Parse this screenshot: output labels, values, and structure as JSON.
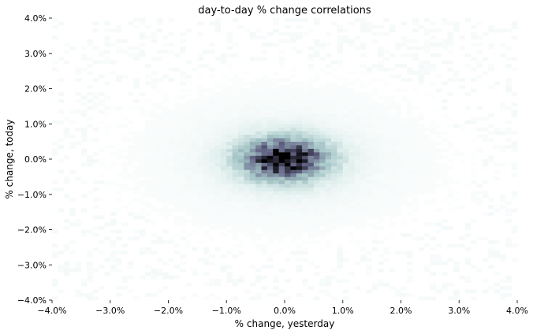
{
  "chart_data": {
    "type": "heatmap",
    "title": "day-to-day % change correlations",
    "xlabel": "% change, yesterday",
    "ylabel": "% change, today",
    "xlim": [
      -4.0,
      4.0
    ],
    "ylim": [
      -4.0,
      4.0
    ],
    "x_ticks": [
      -4.0,
      -3.0,
      -2.0,
      -1.0,
      0.0,
      1.0,
      2.0,
      3.0,
      4.0
    ],
    "y_ticks": [
      -4.0,
      -3.0,
      -2.0,
      -1.0,
      0.0,
      1.0,
      2.0,
      3.0,
      4.0
    ],
    "x_tick_labels": [
      "−4.0%",
      "−3.0%",
      "−2.0%",
      "−1.0%",
      "0.0%",
      "1.0%",
      "2.0%",
      "3.0%",
      "4.0%"
    ],
    "y_tick_labels": [
      "−4.0%",
      "−3.0%",
      "−2.0%",
      "−1.0%",
      "0.0%",
      "1.0%",
      "2.0%",
      "3.0%",
      "4.0%"
    ],
    "grid": false,
    "colormap": "bone_r",
    "density_center": [
      0.0,
      0.0
    ],
    "density_spread_x": 0.55,
    "density_spread_y": 0.45,
    "bins": 80
  }
}
